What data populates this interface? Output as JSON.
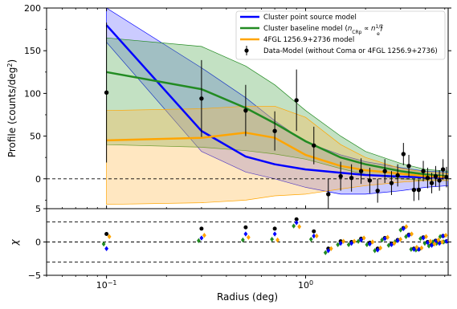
{
  "chart_data": [
    {
      "type": "line",
      "panel": "profile",
      "title": "",
      "xlabel": "",
      "ylabel": "Profile (counts/deg",
      "ylabel_sup": "2",
      "ylabel_close": ")",
      "xscale": "log",
      "xlim": [
        0.05,
        5.2
      ],
      "ylim": [
        -35,
        200
      ],
      "yticks": [
        0,
        50,
        100,
        150,
        200
      ],
      "ytick_labels": [
        "0",
        "50",
        "100",
        "150",
        "200"
      ],
      "x": [
        0.1,
        0.3,
        0.5,
        0.7,
        1.0,
        1.5,
        2.0,
        3.0,
        4.0,
        5.2
      ],
      "series": [
        {
          "name": "Cluster point source model",
          "color": "#0000ff",
          "values": [
            180,
            56,
            26,
            17,
            11,
            7,
            4.5,
            2.5,
            1.8,
            1.2
          ],
          "band_lower": [
            160,
            32,
            8,
            0,
            -10,
            -18,
            -18,
            -14,
            -10,
            -8
          ],
          "band_upper": [
            200,
            130,
            95,
            68,
            43,
            28,
            20,
            13,
            9,
            8
          ],
          "band_color": "#6a6aff"
        },
        {
          "name": "Cluster baseline model (n_CRp ∝ n_e^1/2)",
          "color": "#228b22",
          "values": [
            125,
            105,
            83,
            65,
            44,
            25,
            17,
            9,
            5,
            3
          ],
          "band_lower": [
            40,
            37,
            33,
            29,
            23,
            12,
            5,
            0,
            -2,
            -2
          ],
          "band_upper": [
            165,
            155,
            132,
            110,
            80,
            50,
            32,
            18,
            11,
            9
          ],
          "band_color": "#52a852"
        },
        {
          "name": "4FGL 1256.9+2736 model",
          "color": "#ffa500",
          "values": [
            45,
            48,
            54,
            48,
            28,
            15,
            10,
            6,
            3,
            2
          ],
          "band_lower": [
            -30,
            -28,
            -25,
            -20,
            -18,
            -12,
            -8,
            -4,
            -2,
            -2
          ],
          "band_upper": [
            80,
            82,
            85,
            85,
            72,
            40,
            25,
            12,
            8,
            6
          ],
          "band_color": "#ffb94d"
        }
      ],
      "data_points": {
        "name": "Data-Model (without Coma or 4FGL 1256.9+2736)",
        "x": [
          0.1,
          0.3,
          0.5,
          0.7,
          0.9,
          1.1,
          1.3,
          1.5,
          1.7,
          1.9,
          2.1,
          2.3,
          2.5,
          2.7,
          2.9,
          3.1,
          3.3,
          3.5,
          3.7,
          3.9,
          4.1,
          4.3,
          4.5,
          4.7,
          4.9,
          5.1
        ],
        "y": [
          101,
          94,
          80,
          56,
          92,
          39,
          -18,
          3,
          1,
          9,
          -2,
          -14,
          9,
          -5,
          4,
          29,
          15,
          -13,
          -13,
          9,
          1,
          -5,
          3,
          -2,
          11,
          2
        ],
        "err": [
          82,
          45,
          30,
          23,
          36,
          22,
          18,
          17,
          16,
          15,
          15,
          14,
          14,
          14,
          13,
          13,
          13,
          13,
          12,
          12,
          12,
          12,
          12,
          12,
          12,
          12
        ]
      },
      "reference_line": 0,
      "legend_position": "top-right"
    },
    {
      "type": "scatter",
      "panel": "residuals",
      "title": "",
      "xlabel": "Radius (deg)",
      "ylabel": "χ",
      "xscale": "log",
      "xlim": [
        0.05,
        5.2
      ],
      "ylim": [
        -5,
        5
      ],
      "yticks": [
        -5,
        0,
        5
      ],
      "ytick_labels": [
        "−5",
        "0",
        "5"
      ],
      "xticks": [
        0.1,
        1.0
      ],
      "xtick_label_base": "10",
      "xtick_label_exps": [
        "−1",
        "0"
      ],
      "reference_lines": [
        -3,
        0,
        3
      ],
      "x": [
        0.1,
        0.3,
        0.5,
        0.7,
        0.9,
        1.1,
        1.3,
        1.5,
        1.7,
        1.9,
        2.1,
        2.3,
        2.5,
        2.7,
        2.9,
        3.1,
        3.3,
        3.5,
        3.7,
        3.9,
        4.1,
        4.3,
        4.5,
        4.7,
        4.9,
        5.1
      ],
      "series": [
        {
          "color": "#000000",
          "marker": "circle",
          "values": [
            1.2,
            2.0,
            2.2,
            2.0,
            3.4,
            1.6,
            -1.0,
            0.1,
            0.0,
            0.5,
            -0.1,
            -1.0,
            0.6,
            -0.3,
            0.3,
            2.1,
            1.1,
            -1.0,
            -1.1,
            0.7,
            0.0,
            -0.4,
            0.2,
            -0.1,
            0.9,
            0.1
          ]
        },
        {
          "color": "#228b22",
          "marker": "diamond",
          "values": [
            -0.3,
            0.2,
            0.3,
            0.4,
            2.4,
            0.4,
            -1.6,
            -0.4,
            -0.4,
            0.1,
            -0.4,
            -1.3,
            0.3,
            -0.5,
            0.0,
            1.8,
            0.8,
            -1.1,
            -1.2,
            0.5,
            -0.2,
            -0.6,
            0.0,
            -0.2,
            0.8,
            0.0
          ]
        },
        {
          "color": "#0000ff",
          "marker": "diamond",
          "values": [
            -1.0,
            0.6,
            1.2,
            1.2,
            2.9,
            0.9,
            -1.3,
            -0.2,
            -0.2,
            0.3,
            -0.3,
            -1.2,
            0.5,
            -0.4,
            0.2,
            2.0,
            1.0,
            -1.1,
            -1.1,
            0.6,
            -0.1,
            -0.5,
            0.1,
            -0.2,
            0.9,
            0.1
          ]
        },
        {
          "color": "#ffa500",
          "marker": "diamond",
          "values": [
            0.8,
            1.0,
            0.7,
            0.3,
            2.3,
            0.9,
            -1.0,
            0.1,
            0.1,
            0.6,
            0.0,
            -0.9,
            0.7,
            -0.2,
            0.4,
            2.3,
            1.2,
            -0.8,
            -0.9,
            0.8,
            0.1,
            -0.3,
            0.3,
            0.0,
            1.0,
            0.2
          ]
        }
      ]
    }
  ]
}
